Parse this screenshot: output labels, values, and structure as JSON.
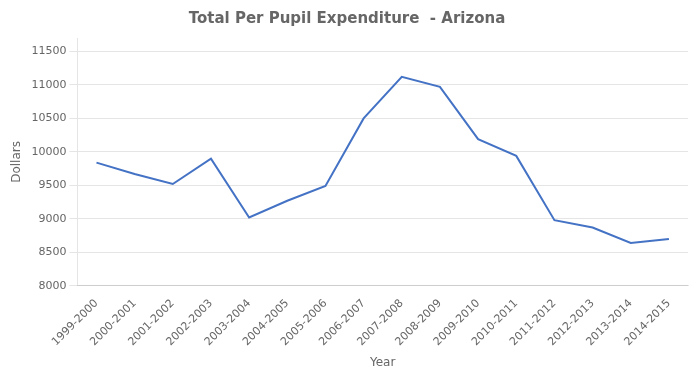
{
  "chart_data": {
    "type": "line",
    "title": "Total Per Pupil Expenditure  - Arizona",
    "xlabel": "Year",
    "ylabel": "Dollars",
    "categories": [
      "1999-2000",
      "2000-2001",
      "2001-2002",
      "2002-2003",
      "2003-2004",
      "2004-2005",
      "2005-2006",
      "2006-2007",
      "2007-2008",
      "2008-2009",
      "2009-2010",
      "2010-2011",
      "2011-2012",
      "2012-2013",
      "2013-2014",
      "2014-2015"
    ],
    "values": [
      9840,
      9670,
      9520,
      9900,
      9020,
      9270,
      9490,
      10500,
      11120,
      10970,
      10190,
      9940,
      8980,
      8870,
      8640,
      8700
    ],
    "color": "#4472C4",
    "ylim": [
      8000,
      11700
    ],
    "yticks": [
      8000,
      8500,
      9000,
      9500,
      10000,
      10500,
      11000,
      11500
    ],
    "grid": "y"
  }
}
